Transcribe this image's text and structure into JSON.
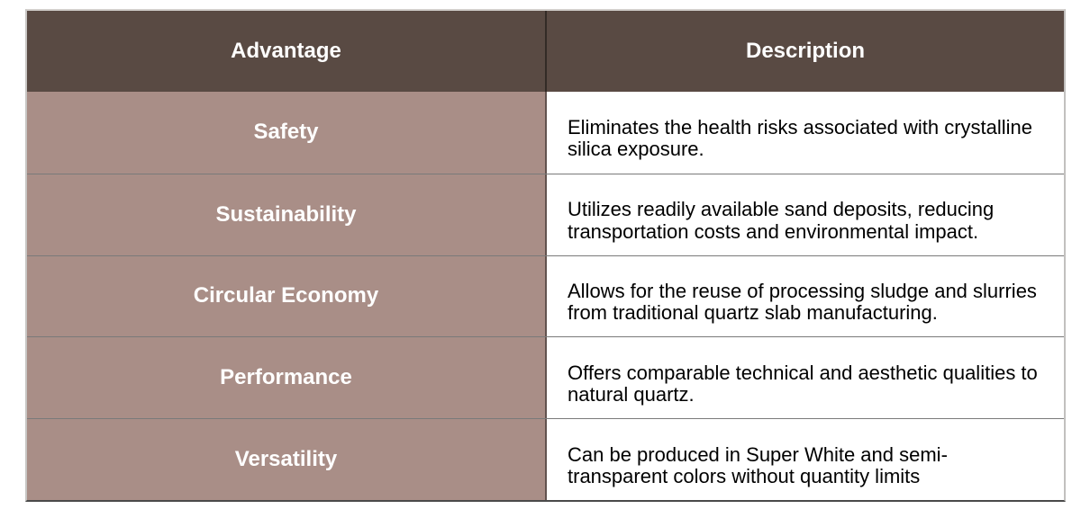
{
  "theme": {
    "header_bg": "#594a43",
    "header_text": "#ffffff",
    "label_bg": "#a98e87",
    "label_text": "#ffffff",
    "desc_bg": "#ffffff",
    "desc_text": "#000000",
    "grid_line": "#6f6f6f"
  },
  "table": {
    "headers": [
      "Advantage",
      "Description"
    ],
    "rows": [
      {
        "advantage": "Safety",
        "description": "Eliminates the health risks associated with crystalline silica exposure."
      },
      {
        "advantage": "Sustainability",
        "description": "Utilizes readily available sand deposits, reducing transportation costs and environmental impact."
      },
      {
        "advantage": "Circular Economy",
        "description": "Allows for the reuse of processing sludge and slurries from traditional quartz slab manufacturing."
      },
      {
        "advantage": "Performance",
        "description": "Offers comparable technical and aesthetic qualities to natural quartz."
      },
      {
        "advantage": "Versatility",
        "description": "Can be produced in Super White and semi-transparent colors without quantity limits"
      }
    ]
  }
}
